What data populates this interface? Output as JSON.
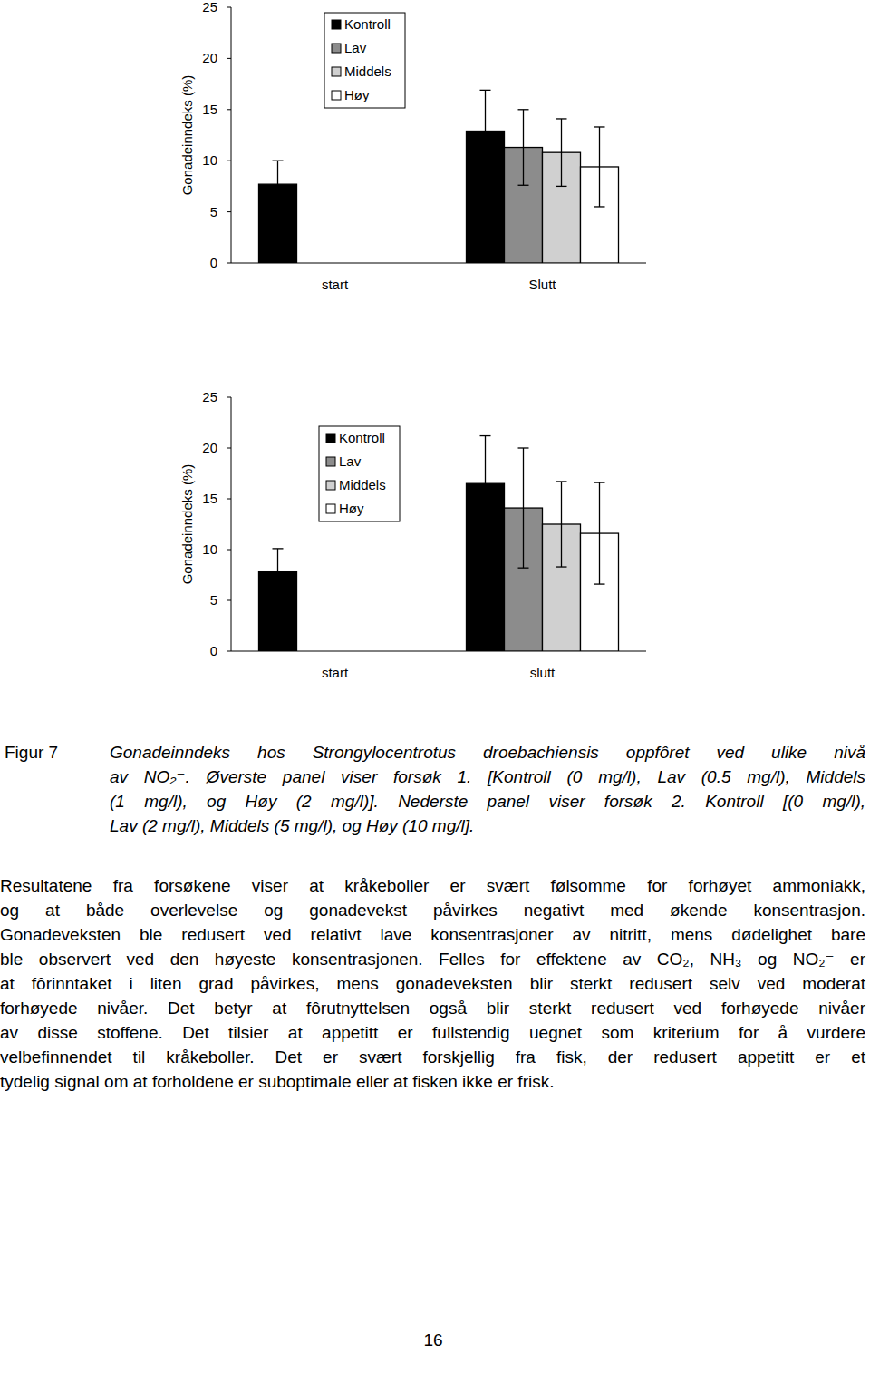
{
  "chart_data": [
    {
      "type": "bar",
      "ylabel": "Gonadeinndeks (%)",
      "categories": [
        "start",
        "Slutt"
      ],
      "series": [
        {
          "name": "Kontroll",
          "color": "#000000",
          "values": [
            7.7,
            12.9
          ],
          "errors": [
            2.3,
            4.0
          ]
        },
        {
          "name": "Lav",
          "color": "#8c8c8c",
          "values": [
            null,
            11.3
          ],
          "errors": [
            null,
            3.7
          ]
        },
        {
          "name": "Middels",
          "color": "#d0d0d0",
          "values": [
            null,
            10.8
          ],
          "errors": [
            null,
            3.3
          ]
        },
        {
          "name": "Høy",
          "color": "#ffffff",
          "values": [
            null,
            9.4
          ],
          "errors": [
            null,
            3.9
          ]
        }
      ],
      "ylim": [
        0,
        25
      ],
      "yticks": [
        0,
        5,
        10,
        15,
        20,
        25
      ],
      "grid": false,
      "legend": "top-left"
    },
    {
      "type": "bar",
      "ylabel": "Gonadeinndeks (%)",
      "categories": [
        "start",
        "slutt"
      ],
      "series": [
        {
          "name": "Kontroll",
          "color": "#000000",
          "values": [
            7.8,
            16.5
          ],
          "errors": [
            2.3,
            4.7
          ]
        },
        {
          "name": "Lav",
          "color": "#8c8c8c",
          "values": [
            null,
            14.1
          ],
          "errors": [
            null,
            5.9
          ]
        },
        {
          "name": "Middels",
          "color": "#d0d0d0",
          "values": [
            null,
            12.5
          ],
          "errors": [
            null,
            4.2
          ]
        },
        {
          "name": "Høy",
          "color": "#ffffff",
          "values": [
            null,
            11.6
          ],
          "errors": [
            null,
            5.0
          ]
        }
      ],
      "ylim": [
        0,
        25
      ],
      "yticks": [
        0,
        5,
        10,
        15,
        20,
        25
      ],
      "grid": false,
      "legend": "top-left"
    }
  ],
  "caption": {
    "label": "Figur 7",
    "lines": [
      "Gonadeinndeks hos Strongylocentrotus droebachiensis oppfôret ved ulike nivå",
      "av NO₂⁻. Øverste panel viser forsøk 1. [Kontroll (0 mg/l), Lav (0.5 mg/l), Middels",
      "(1 mg/l), og Høy (2 mg/l)]. Nederste panel viser forsøk 2. Kontroll [(0 mg/l),",
      "Lav (2 mg/l), Middels (5 mg/l), og Høy (10 mg/l]."
    ]
  },
  "body": {
    "lines": [
      "Resultatene fra forsøkene viser at kråkeboller er svært følsomme for forhøyet ammoniakk,",
      "og at både overlevelse og gonadevekst påvirkes negativt med økende konsentrasjon.",
      "Gonadeveksten ble redusert ved relativt lave konsentrasjoner av nitritt, mens dødelighet bare",
      "ble observert ved den høyeste konsentrasjonen. Felles for effektene av CO₂, NH₃ og NO₂⁻ er",
      "at fôrinntaket i liten grad påvirkes, mens gonadeveksten blir sterkt redusert selv ved moderat",
      "forhøyede nivåer. Det betyr at fôrutnyttelsen også blir sterkt redusert ved forhøyede nivåer",
      "av disse stoffene. Det tilsier at appetitt er fullstendig uegnet som kriterium for å vurdere",
      "velbefinnendet til kråkeboller. Det er svært forskjellig fra fisk, der redusert appetitt er et",
      "tydelig signal om at forholdene er suboptimale eller at fisken ikke er frisk."
    ]
  },
  "page_number": "16"
}
